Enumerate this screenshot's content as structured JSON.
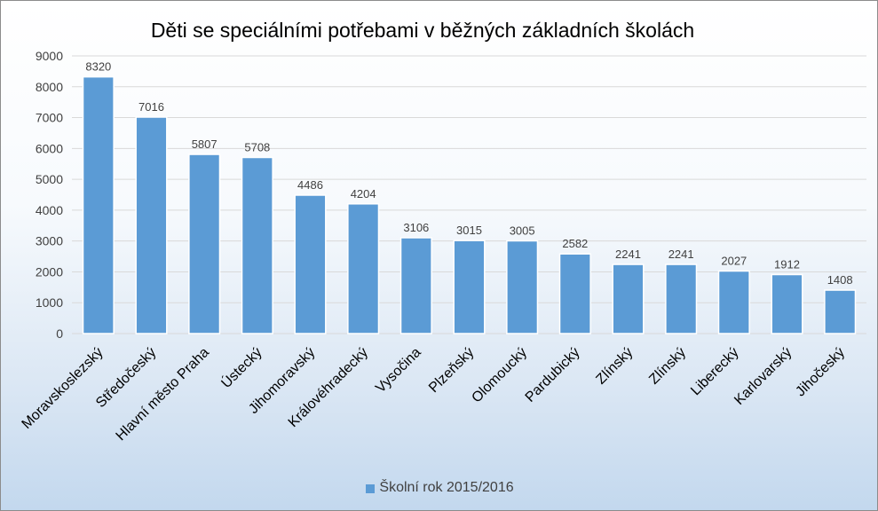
{
  "chart_data": {
    "type": "bar",
    "title": "Děti se speciálními potřebami v běžných základních školách",
    "xlabel": "",
    "ylabel": "",
    "categories": [
      "Moravskoslezský",
      "Středočeský",
      "Hlavní město Praha",
      "Ústecký",
      "Jihomoravský",
      "Královéhradecký",
      "Vysočina",
      "Plzeňský",
      "Olomoucký",
      "Pardubický",
      "Zlínský",
      "Zlínský",
      "Liberecký",
      "Karlovarský",
      "Jihočeský"
    ],
    "series": [
      {
        "name": "Školní rok 2015/2016",
        "values": [
          8320,
          7016,
          5807,
          5708,
          4486,
          4204,
          3106,
          3015,
          3005,
          2582,
          2241,
          2241,
          2027,
          1912,
          1408
        ]
      }
    ],
    "ylim": [
      0,
      9000
    ],
    "yticks": [
      "0",
      "1000",
      "2000",
      "3000",
      "4000",
      "5000",
      "6000",
      "7000",
      "8000",
      "9000"
    ],
    "grid": true,
    "legend_position": "bottom",
    "colors": {
      "bar": "#5b9bd5",
      "bar_edge": "#ffffff",
      "grid": "#d9d9d9"
    }
  }
}
